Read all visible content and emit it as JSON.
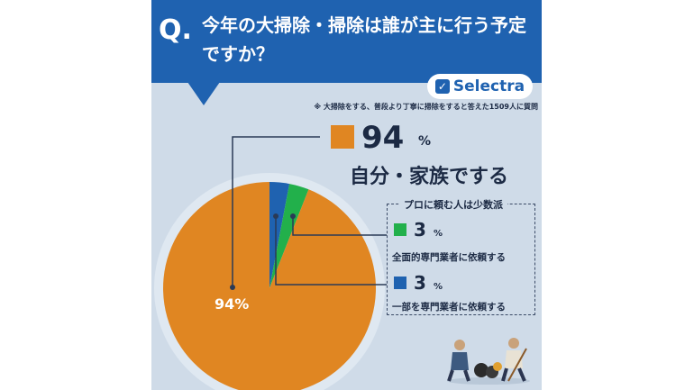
{
  "header": {
    "q_mark": "Q.",
    "question": "今年の大掃除・掃除は誰が主に行う予定ですか？"
  },
  "logo": {
    "check": "✓",
    "text": "Selectra"
  },
  "note": "※ 大掃除をする、普段より丁寧に掃除をすると答えた1509人に質問",
  "pro_box_title": "プロに頼む人は少数派",
  "chart_data": {
    "type": "pie",
    "unit": "%",
    "series": [
      {
        "name": "自分・家族でする",
        "value": 94,
        "color": "#e08622",
        "value_text": "94",
        "slice_label": "94%"
      },
      {
        "name": "全面的専門業者に依頼する",
        "value": 3,
        "color": "#22b04b",
        "value_text": "3"
      },
      {
        "name": "一部を専門業者に依頼する",
        "value": 3,
        "color": "#1f62b0",
        "value_text": "3"
      }
    ]
  }
}
